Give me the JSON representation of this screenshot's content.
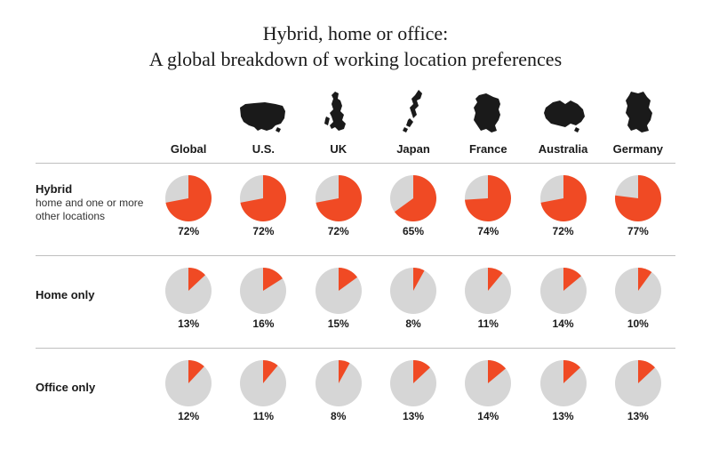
{
  "title_line1": "Hybrid, home or office:",
  "title_line2": "A global breakdown of working location preferences",
  "colors": {
    "slice": "#f04a24",
    "remainder": "#d6d6d6",
    "text": "#1a1a1a",
    "map": "#1a1a1a",
    "divider": "#bfbfbf",
    "background": "#ffffff"
  },
  "pie": {
    "diameter": 52,
    "start_angle_deg": 0,
    "label_fontsize": 12,
    "label_fontweight": "700"
  },
  "countries": [
    {
      "key": "global",
      "label": "Global",
      "map": null
    },
    {
      "key": "us",
      "label": "U.S.",
      "map": "us"
    },
    {
      "key": "uk",
      "label": "UK",
      "map": "uk"
    },
    {
      "key": "japan",
      "label": "Japan",
      "map": "japan"
    },
    {
      "key": "france",
      "label": "France",
      "map": "france"
    },
    {
      "key": "australia",
      "label": "Australia",
      "map": "australia"
    },
    {
      "key": "germany",
      "label": "Germany",
      "map": "germany"
    }
  ],
  "rows": [
    {
      "key": "hybrid",
      "label": "Hybrid",
      "sublabel": "home and one or more other locations",
      "values": {
        "global": 72,
        "us": 72,
        "uk": 72,
        "japan": 65,
        "france": 74,
        "australia": 72,
        "germany": 77
      }
    },
    {
      "key": "home",
      "label": "Home only",
      "sublabel": "",
      "values": {
        "global": 13,
        "us": 16,
        "uk": 15,
        "japan": 8,
        "france": 11,
        "australia": 14,
        "germany": 10
      }
    },
    {
      "key": "office",
      "label": "Office only",
      "sublabel": "",
      "values": {
        "global": 12,
        "us": 11,
        "uk": 8,
        "japan": 13,
        "france": 14,
        "australia": 13,
        "germany": 13
      }
    }
  ],
  "typography": {
    "title_font": "Georgia, serif",
    "title_fontsize": 22,
    "body_font": "Arial, Helvetica, sans-serif",
    "country_label_fontsize": 13,
    "row_label_fontsize": 13
  }
}
